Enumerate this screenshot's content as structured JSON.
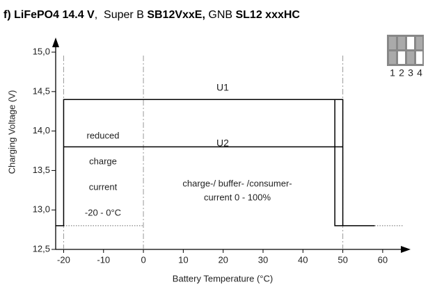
{
  "chart_data": {
    "type": "line",
    "title_parts": [
      {
        "text": "f)",
        "bold": true
      },
      {
        "text": " LiFePO4 14.4 V",
        "bold": true
      },
      {
        "text": ",  Super B ",
        "bold": false
      },
      {
        "text": "SB12VxxE,",
        "bold": true
      },
      {
        "text": " GNB ",
        "bold": false
      },
      {
        "text": "SL12 xxxHC",
        "bold": true
      }
    ],
    "x_label": "Battery Temperature (°C)",
    "y_label": "Charging Voltage (V)",
    "xlim": [
      -22,
      67
    ],
    "ylim": [
      12.5,
      15.15
    ],
    "xticks": [
      -20,
      -10,
      0,
      10,
      20,
      30,
      40,
      50,
      60
    ],
    "yticks": [
      {
        "value": 12.5,
        "label": "12,5"
      },
      {
        "value": 13.0,
        "label": "13,0"
      },
      {
        "value": 13.5,
        "label": "13,5"
      },
      {
        "value": 14.0,
        "label": "14,0"
      },
      {
        "value": 14.5,
        "label": "14,5"
      },
      {
        "value": 15.0,
        "label": "15,0"
      }
    ],
    "series": [
      {
        "name": "U1",
        "color": "#000000",
        "x": [
          -22,
          -20,
          -20,
          50,
          50
        ],
        "values": [
          12.8,
          12.8,
          14.4,
          14.4,
          12.8
        ]
      },
      {
        "name": "U2",
        "color": "#000000",
        "x": [
          -20,
          50
        ],
        "values": [
          13.8,
          13.8
        ]
      },
      {
        "color": "#000000",
        "x": [
          48,
          48,
          58
        ],
        "values": [
          14.4,
          12.8,
          12.8
        ]
      }
    ],
    "guide_lines_x": [
      -20,
      0,
      50
    ],
    "dotted_segments": [
      {
        "x": [
          -20,
          0
        ],
        "y": 12.8
      },
      {
        "x": [
          58,
          65
        ],
        "y": 12.8
      }
    ],
    "annotations": [
      "reduced",
      "charge",
      "current",
      "-20 - 0°C",
      "charge-/ buffer- /consumer-",
      "current 0 - 100%"
    ],
    "switch_labels": [
      "1",
      "2",
      "3",
      "4"
    ]
  }
}
